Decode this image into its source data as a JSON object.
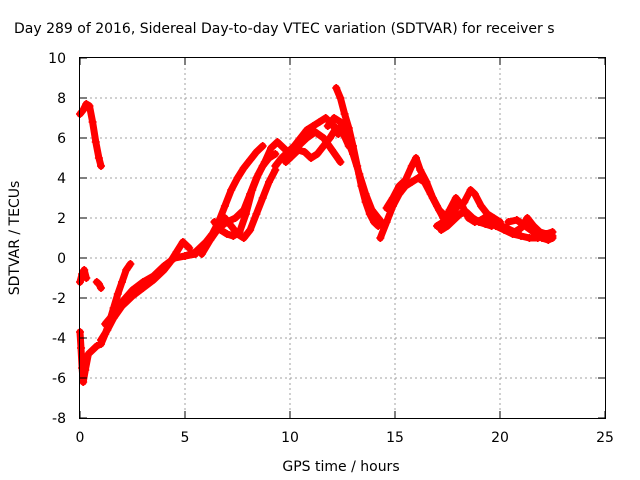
{
  "chart_data": {
    "type": "scatter",
    "title": "Day 289 of 2016, Sidereal Day-to-day VTEC variation (SDTVAR) for receiver s",
    "xlabel": "GPS time / hours",
    "ylabel": "SDTVAR / TECUs",
    "xlim": [
      0,
      25
    ],
    "ylim": [
      -8,
      10
    ],
    "xticks": [
      "0",
      "5",
      "10",
      "15",
      "20",
      "25"
    ],
    "yticks": [
      "-8",
      "-6",
      "-4",
      "-2",
      "0",
      "2",
      "4",
      "6",
      "8",
      "10"
    ],
    "grid": true,
    "marker": "+",
    "color": "#ff0000",
    "series": [
      {
        "points": [
          [
            0.0,
            7.2
          ],
          [
            0.15,
            7.4
          ],
          [
            0.3,
            7.7
          ],
          [
            0.45,
            7.6
          ],
          [
            0.6,
            6.8
          ],
          [
            0.75,
            5.8
          ],
          [
            0.9,
            5.0
          ],
          [
            1.0,
            4.6
          ]
        ]
      },
      {
        "points": [
          [
            0.0,
            -1.2
          ],
          [
            0.1,
            -0.8
          ],
          [
            0.2,
            -0.6
          ],
          [
            0.3,
            -1.0
          ]
        ]
      },
      {
        "points": [
          [
            0.8,
            -1.2
          ],
          [
            0.9,
            -1.3
          ],
          [
            1.0,
            -1.5
          ]
        ]
      },
      {
        "points": [
          [
            0.0,
            -3.7
          ],
          [
            0.05,
            -4.5
          ],
          [
            0.1,
            -5.5
          ],
          [
            0.15,
            -6.2
          ],
          [
            0.25,
            -5.6
          ],
          [
            0.4,
            -4.8
          ],
          [
            0.6,
            -4.6
          ],
          [
            0.8,
            -4.4
          ],
          [
            1.0,
            -4.3
          ],
          [
            1.2,
            -3.8
          ],
          [
            1.4,
            -3.2
          ],
          [
            1.6,
            -2.5
          ],
          [
            1.8,
            -1.8
          ],
          [
            2.0,
            -1.2
          ],
          [
            2.2,
            -0.6
          ],
          [
            2.4,
            -0.3
          ]
        ]
      },
      {
        "points": [
          [
            1.0,
            -4.1
          ],
          [
            1.3,
            -3.6
          ],
          [
            1.6,
            -3.0
          ],
          [
            2.0,
            -2.4
          ],
          [
            2.5,
            -1.9
          ],
          [
            3.0,
            -1.5
          ],
          [
            3.5,
            -1.1
          ],
          [
            4.0,
            -0.6
          ],
          [
            4.3,
            -0.2
          ],
          [
            4.6,
            0.3
          ],
          [
            4.9,
            0.8
          ],
          [
            5.2,
            0.5
          ]
        ]
      },
      {
        "points": [
          [
            1.2,
            -3.3
          ],
          [
            1.6,
            -2.8
          ],
          [
            2.0,
            -2.2
          ],
          [
            2.5,
            -1.6
          ],
          [
            3.0,
            -1.2
          ],
          [
            3.5,
            -0.9
          ],
          [
            4.0,
            -0.4
          ],
          [
            4.5,
            0.0
          ],
          [
            5.0,
            0.1
          ],
          [
            5.5,
            0.2
          ]
        ]
      },
      {
        "points": [
          [
            5.0,
            0.1
          ],
          [
            5.5,
            0.3
          ],
          [
            6.0,
            0.8
          ],
          [
            6.3,
            1.2
          ],
          [
            6.6,
            1.8
          ],
          [
            6.9,
            2.6
          ],
          [
            7.2,
            3.4
          ],
          [
            7.5,
            4.0
          ],
          [
            7.8,
            4.5
          ],
          [
            8.1,
            4.9
          ],
          [
            8.4,
            5.3
          ],
          [
            8.7,
            5.6
          ]
        ]
      },
      {
        "points": [
          [
            5.8,
            0.2
          ],
          [
            6.2,
            0.9
          ],
          [
            6.6,
            1.5
          ],
          [
            7.0,
            1.8
          ],
          [
            7.4,
            2.0
          ],
          [
            7.8,
            2.4
          ],
          [
            8.1,
            3.2
          ],
          [
            8.4,
            4.0
          ],
          [
            8.7,
            4.6
          ],
          [
            9.0,
            5.0
          ],
          [
            9.3,
            5.2
          ]
        ]
      },
      {
        "points": [
          [
            6.4,
            1.8
          ],
          [
            6.7,
            1.4
          ],
          [
            7.0,
            1.2
          ],
          [
            7.3,
            1.1
          ],
          [
            7.6,
            1.3
          ],
          [
            7.9,
            2.2
          ],
          [
            8.2,
            3.4
          ],
          [
            8.5,
            4.2
          ],
          [
            8.8,
            4.8
          ],
          [
            9.1,
            5.5
          ],
          [
            9.4,
            5.8
          ],
          [
            9.7,
            5.5
          ],
          [
            10.0,
            5.2
          ]
        ]
      },
      {
        "points": [
          [
            6.9,
            2.0
          ],
          [
            7.2,
            1.6
          ],
          [
            7.5,
            1.2
          ],
          [
            7.8,
            1.0
          ],
          [
            8.1,
            1.4
          ],
          [
            8.4,
            2.2
          ],
          [
            8.7,
            3.0
          ],
          [
            9.0,
            3.8
          ],
          [
            9.3,
            4.4
          ]
        ]
      },
      {
        "points": [
          [
            9.3,
            4.6
          ],
          [
            9.6,
            5.0
          ],
          [
            9.9,
            5.3
          ],
          [
            10.2,
            5.6
          ],
          [
            10.5,
            6.0
          ],
          [
            10.8,
            6.4
          ],
          [
            11.1,
            6.6
          ],
          [
            11.4,
            6.8
          ],
          [
            11.7,
            7.0
          ],
          [
            12.0,
            6.7
          ],
          [
            12.3,
            6.2
          ]
        ]
      },
      {
        "points": [
          [
            9.8,
            4.8
          ],
          [
            10.1,
            5.1
          ],
          [
            10.4,
            5.4
          ],
          [
            10.7,
            5.3
          ],
          [
            11.0,
            5.0
          ],
          [
            11.3,
            5.2
          ],
          [
            11.6,
            5.6
          ],
          [
            11.9,
            6.0
          ],
          [
            12.2,
            6.5
          ],
          [
            12.5,
            6.3
          ],
          [
            12.8,
            5.6
          ]
        ]
      },
      {
        "points": [
          [
            10.0,
            5.0
          ],
          [
            10.4,
            5.6
          ],
          [
            10.8,
            6.0
          ],
          [
            11.2,
            6.3
          ],
          [
            11.6,
            6.0
          ],
          [
            12.0,
            5.4
          ],
          [
            12.4,
            4.8
          ]
        ]
      },
      {
        "points": [
          [
            12.2,
            8.5
          ],
          [
            12.4,
            8.0
          ],
          [
            12.6,
            7.2
          ],
          [
            12.8,
            6.5
          ],
          [
            13.0,
            5.6
          ],
          [
            13.2,
            4.6
          ],
          [
            13.4,
            3.6
          ],
          [
            13.6,
            2.8
          ],
          [
            13.8,
            2.2
          ],
          [
            14.0,
            1.8
          ],
          [
            14.2,
            1.6
          ]
        ]
      },
      {
        "points": [
          [
            11.8,
            6.6
          ],
          [
            12.1,
            7.0
          ],
          [
            12.4,
            6.8
          ],
          [
            12.7,
            6.0
          ],
          [
            13.0,
            5.2
          ],
          [
            13.3,
            4.2
          ],
          [
            13.6,
            3.2
          ],
          [
            13.9,
            2.4
          ],
          [
            14.2,
            2.0
          ],
          [
            14.5,
            1.6
          ]
        ]
      },
      {
        "points": [
          [
            14.3,
            1.0
          ],
          [
            14.6,
            1.8
          ],
          [
            14.9,
            2.6
          ],
          [
            15.2,
            3.2
          ],
          [
            15.5,
            3.6
          ],
          [
            15.8,
            3.8
          ],
          [
            16.1,
            4.0
          ],
          [
            16.4,
            3.8
          ],
          [
            16.7,
            3.2
          ],
          [
            17.0,
            2.6
          ],
          [
            17.3,
            2.0
          ],
          [
            17.6,
            1.8
          ]
        ]
      },
      {
        "points": [
          [
            14.6,
            2.5
          ],
          [
            14.9,
            3.0
          ],
          [
            15.2,
            3.6
          ],
          [
            15.5,
            3.9
          ],
          [
            15.8,
            4.6
          ],
          [
            16.0,
            5.0
          ],
          [
            16.2,
            4.4
          ],
          [
            16.5,
            3.8
          ],
          [
            16.8,
            3.0
          ],
          [
            17.1,
            2.4
          ],
          [
            17.4,
            2.1
          ]
        ]
      },
      {
        "points": [
          [
            17.4,
            1.8
          ],
          [
            17.7,
            2.2
          ],
          [
            18.0,
            2.6
          ],
          [
            18.3,
            2.8
          ],
          [
            18.6,
            3.4
          ],
          [
            18.8,
            3.2
          ],
          [
            19.1,
            2.6
          ],
          [
            19.4,
            2.2
          ],
          [
            19.7,
            2.0
          ],
          [
            20.0,
            1.8
          ]
        ]
      },
      {
        "points": [
          [
            17.2,
            1.4
          ],
          [
            17.5,
            1.6
          ],
          [
            17.8,
            1.9
          ],
          [
            18.1,
            2.2
          ],
          [
            18.4,
            2.3
          ],
          [
            18.7,
            2.0
          ],
          [
            19.0,
            1.8
          ],
          [
            19.3,
            1.7
          ],
          [
            19.6,
            1.6
          ]
        ]
      },
      {
        "points": [
          [
            17.0,
            1.6
          ],
          [
            17.3,
            1.8
          ],
          [
            17.6,
            2.4
          ],
          [
            17.9,
            3.0
          ],
          [
            18.2,
            2.6
          ],
          [
            18.5,
            2.0
          ],
          [
            18.8,
            1.8
          ],
          [
            19.1,
            1.9
          ],
          [
            19.4,
            2.1
          ]
        ]
      },
      {
        "points": [
          [
            19.5,
            1.9
          ],
          [
            19.9,
            1.7
          ],
          [
            20.3,
            1.5
          ],
          [
            20.7,
            1.3
          ],
          [
            21.0,
            1.5
          ],
          [
            21.3,
            2.0
          ],
          [
            21.6,
            1.6
          ],
          [
            21.9,
            1.3
          ],
          [
            22.2,
            1.2
          ],
          [
            22.5,
            1.3
          ]
        ]
      },
      {
        "points": [
          [
            19.8,
            1.6
          ],
          [
            20.2,
            1.4
          ],
          [
            20.6,
            1.2
          ],
          [
            21.0,
            1.1
          ],
          [
            21.4,
            1.0
          ],
          [
            21.8,
            1.0
          ],
          [
            22.2,
            1.1
          ],
          [
            22.5,
            1.1
          ]
        ]
      },
      {
        "points": [
          [
            20.4,
            1.8
          ],
          [
            20.8,
            1.9
          ],
          [
            21.2,
            1.6
          ],
          [
            21.6,
            1.3
          ],
          [
            22.0,
            1.0
          ],
          [
            22.3,
            0.9
          ],
          [
            22.5,
            1.0
          ]
        ]
      }
    ]
  }
}
